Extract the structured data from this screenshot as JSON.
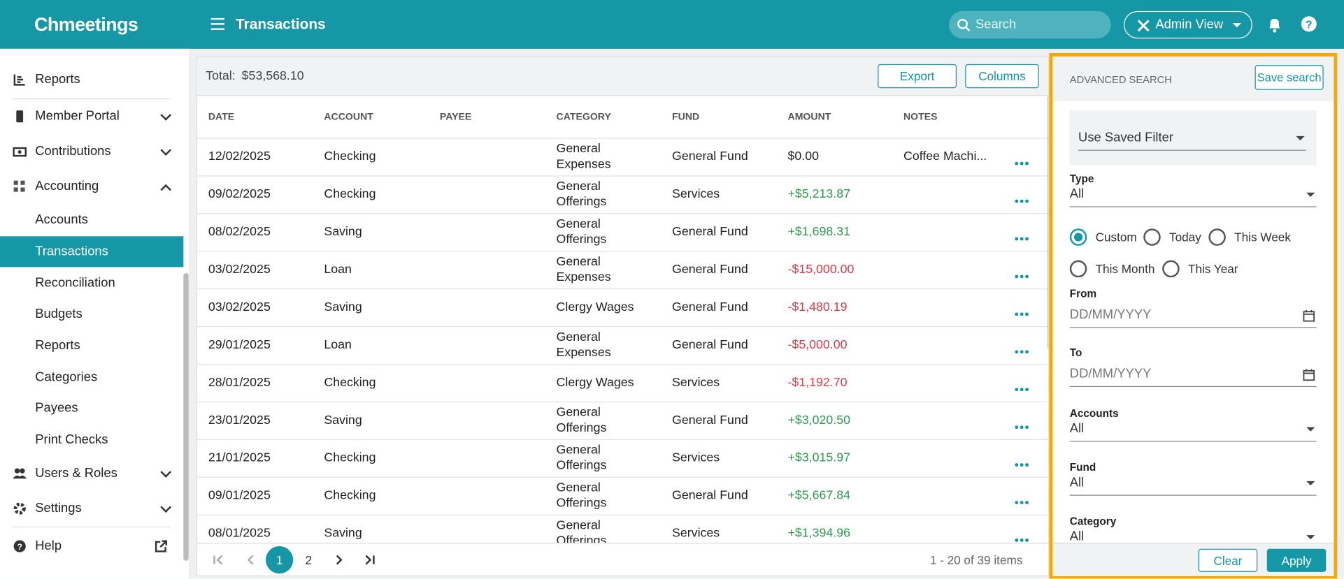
{
  "header": {
    "brand": "Chmeetings",
    "page_title": "Transactions",
    "search_placeholder": "Search",
    "view": "Admin View"
  },
  "sidebar": {
    "items": [
      {
        "label": "Reports",
        "level": 0,
        "icon": "chart"
      },
      {
        "label": "Member Portal",
        "level": 0,
        "icon": "phone",
        "chevron": "down"
      },
      {
        "label": "Contributions",
        "level": 0,
        "icon": "money",
        "chevron": "down"
      },
      {
        "label": "Accounting",
        "level": 0,
        "icon": "grid",
        "chevron": "up"
      },
      {
        "label": "Accounts",
        "level": 1
      },
      {
        "label": "Transactions",
        "level": 1,
        "active": true
      },
      {
        "label": "Reconciliation",
        "level": 1
      },
      {
        "label": "Budgets",
        "level": 1
      },
      {
        "label": "Reports",
        "level": 1
      },
      {
        "label": "Categories",
        "level": 1
      },
      {
        "label": "Payees",
        "level": 1
      },
      {
        "label": "Print Checks",
        "level": 1
      },
      {
        "label": "Users & Roles",
        "level": 0,
        "icon": "users",
        "chevron": "down"
      },
      {
        "label": "Settings",
        "level": 0,
        "icon": "gear",
        "chevron": "down"
      },
      {
        "label": "Help",
        "level": 0,
        "icon": "help",
        "external": true
      }
    ]
  },
  "table": {
    "total_label": "Total:",
    "total": "$53,568.10",
    "export": "Export",
    "columns_button": "Columns",
    "columns": [
      "DATE",
      "ACCOUNT",
      "PAYEE",
      "CATEGORY",
      "FUND",
      "AMOUNT",
      "NOTES"
    ],
    "rows": [
      {
        "date": "12/02/2025",
        "account": "Checking",
        "category": "General Expenses",
        "fund": "General Fund",
        "amount": "$0.00",
        "notes": "Coffee Machi..."
      },
      {
        "date": "09/02/2025",
        "account": "Checking",
        "category": "General Offerings",
        "fund": "Services",
        "amount": "+$5,213.87"
      },
      {
        "date": "08/02/2025",
        "account": "Saving",
        "category": "General Offerings",
        "fund": "General Fund",
        "amount": "+$1,698.31"
      },
      {
        "date": "03/02/2025",
        "account": "Loan",
        "category": "General Expenses",
        "fund": "General Fund",
        "amount": "-$15,000.00"
      },
      {
        "date": "03/02/2025",
        "account": "Saving",
        "category": "Clergy Wages",
        "fund": "General Fund",
        "amount": "-$1,480.19"
      },
      {
        "date": "29/01/2025",
        "account": "Loan",
        "category": "General Expenses",
        "fund": "General Fund",
        "amount": "-$5,000.00"
      },
      {
        "date": "28/01/2025",
        "account": "Checking",
        "category": "Clergy Wages",
        "fund": "Services",
        "amount": "-$1,192.70"
      },
      {
        "date": "23/01/2025",
        "account": "Saving",
        "category": "General Offerings",
        "fund": "General Fund",
        "amount": "+$3,020.50"
      },
      {
        "date": "21/01/2025",
        "account": "Checking",
        "category": "General Offerings",
        "fund": "Services",
        "amount": "+$3,015.97"
      },
      {
        "date": "09/01/2025",
        "account": "Checking",
        "category": "General Offerings",
        "fund": "General Fund",
        "amount": "+$5,667.84"
      },
      {
        "date": "08/01/2025",
        "account": "Saving",
        "category": "General Offerings",
        "fund": "Services",
        "amount": "+$1,394.96"
      }
    ],
    "pages": [
      "1",
      "2"
    ],
    "current_page": 0,
    "items_info": "1 - 20 of 39 items"
  },
  "search_panel": {
    "title": "ADVANCED SEARCH",
    "save": "Save search",
    "saved_filter": "Use Saved Filter",
    "type_label": "Type",
    "type_value": "All",
    "periods": [
      "Custom",
      "Today",
      "This Week",
      "This Month",
      "This Year"
    ],
    "checked_period": 0,
    "from_label": "From",
    "from_placeholder": "DD/MM/YYYY",
    "to_label": "To",
    "to_placeholder": "DD/MM/YYYY",
    "fields": [
      {
        "label": "Accounts",
        "value": "All"
      },
      {
        "label": "Fund",
        "value": "All"
      },
      {
        "label": "Category",
        "value": "All"
      }
    ],
    "clear": "Clear",
    "apply": "Apply"
  }
}
